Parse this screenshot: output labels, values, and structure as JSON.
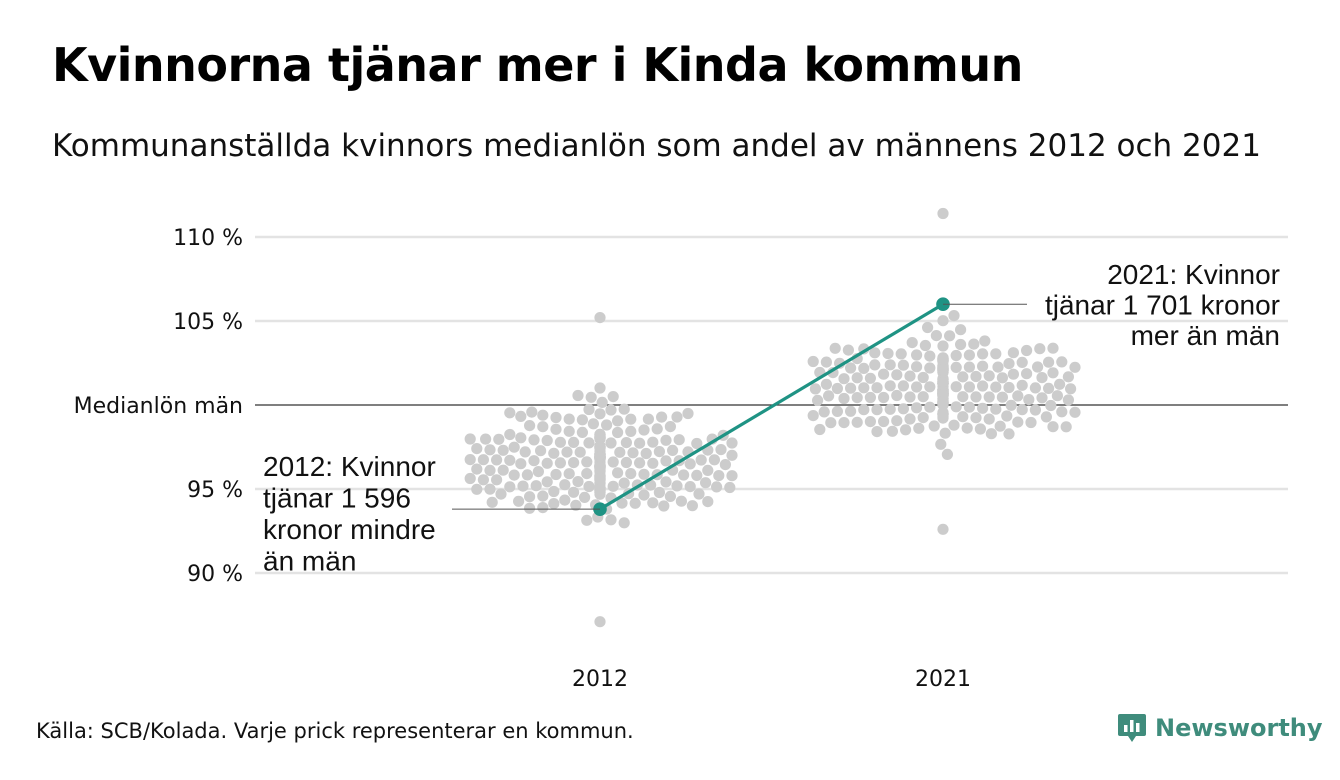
{
  "title": "Kvinnorna tjänar mer i Kinda kommun",
  "subtitle": "Kommunanställda kvinnors medianlön som andel av männens 2012 och 2021",
  "source": "Källa: SCB/Kolada. Varje prick representerar en kommun.",
  "brand": {
    "name": "Newsworthy",
    "color": "#3f8c7c"
  },
  "chart_data": {
    "type": "scatter",
    "title": "Kvinnorna tjänar mer i Kinda kommun",
    "x_categories": [
      "2012",
      "2021"
    ],
    "y_unit": "%",
    "ylim": [
      86.5,
      111.5
    ],
    "y_ticks": [
      {
        "value": 110,
        "label": "110 %"
      },
      {
        "value": 105,
        "label": "105 %"
      },
      {
        "value": 100,
        "label": "Medianlön män"
      },
      {
        "value": 95,
        "label": "95 %"
      },
      {
        "value": 90,
        "label": "90 %"
      }
    ],
    "grid": true,
    "reference_line": {
      "value": 100,
      "label": "Medianlön män"
    },
    "distribution": {
      "dot_color": "#cccccc",
      "note": "Varje prick representerar en kommun.",
      "groups": [
        {
          "category": "2012",
          "count": 290,
          "center": 96.6,
          "spread": 2.4,
          "min": 87.1,
          "max": 105.2
        },
        {
          "category": "2021",
          "count": 290,
          "center": 101.1,
          "spread": 2.3,
          "min": 92.6,
          "max": 111.4
        }
      ]
    },
    "highlight": {
      "name": "Kinda",
      "color": "#1f9384",
      "points": [
        {
          "x": "2012",
          "y": 93.8,
          "annotation": [
            "2012: Kvinnor",
            "tjänar 1 596",
            "kronor mindre",
            "än män"
          ]
        },
        {
          "x": "2021",
          "y": 106.0,
          "annotation": [
            "2021: Kvinnor",
            "tjänar 1 701 kronor",
            "mer än män"
          ]
        }
      ]
    }
  }
}
